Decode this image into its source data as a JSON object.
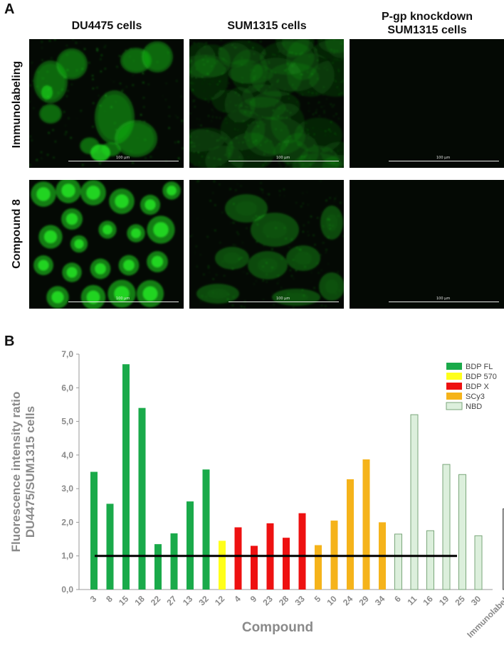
{
  "panel_a": {
    "letter": "A",
    "columns": [
      "DU4475 cells",
      "SUM1315 cells",
      "P-gp knockdown\nSUM1315 cells"
    ],
    "rows": [
      "Immunolabeling",
      "Compound 8"
    ],
    "scale_label": "100 µm"
  },
  "panel_b": {
    "letter": "B"
  },
  "colors": {
    "BDP FL": "#1aaa4a",
    "BDP 570": "#ffff1a",
    "BDP X": "#ee1111",
    "SCy3": "#f5b31a",
    "NBD": "#dcefdc",
    "Immunolabel": "#b5b5b5",
    "fluor_green": "#22dd22"
  },
  "chart_data": {
    "type": "bar",
    "ylabel": "Fluorescence intensity ratio\nDU4475/SUM1315 cells",
    "xlabel": "Compound",
    "ylim": [
      0,
      7
    ],
    "yticks": [
      "0,0",
      "1,0",
      "2,0",
      "3,0",
      "4,0",
      "5,0",
      "6,0",
      "7,0"
    ],
    "reference_line": 1.0,
    "legend": [
      "BDP FL",
      "BDP 570",
      "BDP X",
      "SCy3",
      "NBD"
    ],
    "legend_placement": "top-right",
    "bars": [
      {
        "label": "3",
        "value": 3.5,
        "group": "BDP FL"
      },
      {
        "label": "8",
        "value": 2.55,
        "group": "BDP FL"
      },
      {
        "label": "15",
        "value": 6.7,
        "group": "BDP FL"
      },
      {
        "label": "18",
        "value": 5.4,
        "group": "BDP FL"
      },
      {
        "label": "22",
        "value": 1.35,
        "group": "BDP FL"
      },
      {
        "label": "27",
        "value": 1.67,
        "group": "BDP FL"
      },
      {
        "label": "13",
        "value": 2.62,
        "group": "BDP FL"
      },
      {
        "label": "32",
        "value": 3.57,
        "group": "BDP FL"
      },
      {
        "label": "12",
        "value": 1.45,
        "group": "BDP 570"
      },
      {
        "label": "4",
        "value": 1.85,
        "group": "BDP X"
      },
      {
        "label": "9",
        "value": 1.3,
        "group": "BDP X"
      },
      {
        "label": "23",
        "value": 1.97,
        "group": "BDP X"
      },
      {
        "label": "28",
        "value": 1.54,
        "group": "BDP X"
      },
      {
        "label": "33",
        "value": 2.27,
        "group": "BDP X"
      },
      {
        "label": "5",
        "value": 1.32,
        "group": "SCy3"
      },
      {
        "label": "10",
        "value": 2.05,
        "group": "SCy3"
      },
      {
        "label": "24",
        "value": 3.28,
        "group": "SCy3"
      },
      {
        "label": "29",
        "value": 3.87,
        "group": "SCy3"
      },
      {
        "label": "34",
        "value": 2.0,
        "group": "SCy3"
      },
      {
        "label": "6",
        "value": 1.65,
        "group": "NBD"
      },
      {
        "label": "11",
        "value": 5.2,
        "group": "NBD"
      },
      {
        "label": "16",
        "value": 1.75,
        "group": "NBD"
      },
      {
        "label": "19",
        "value": 3.72,
        "group": "NBD"
      },
      {
        "label": "25",
        "value": 3.42,
        "group": "NBD"
      },
      {
        "label": "30",
        "value": 1.6,
        "group": "NBD"
      },
      {
        "label": "Immunolabel.",
        "value": 2.4,
        "group": "Immunolabel",
        "gap_before": true
      }
    ]
  }
}
